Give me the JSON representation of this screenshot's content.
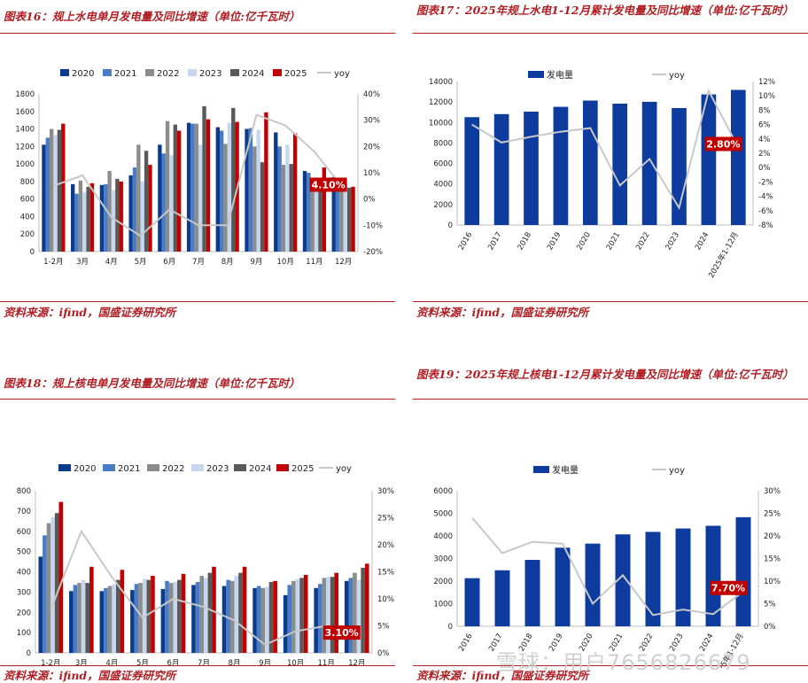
{
  "watermark": "雪球：用户7656826679",
  "panels": [
    {
      "id": "p16",
      "title": "图表16：规上水电单月发电量及同比增速（单位:亿千瓦时）",
      "source": "资料来源：ifind，国盛证券研究所",
      "callout": "4.10%",
      "colors": {
        "2020": "#0d3b8c",
        "2021": "#4a7cc4",
        "2022": "#8c8c8c",
        "2023": "#c5d7ef",
        "2024": "#595959",
        "2025": "#c00000",
        "yoy": "#c8c8c8"
      },
      "chart_data": {
        "type": "bar",
        "categories": [
          "1-2月",
          "3月",
          "4月",
          "5月",
          "6月",
          "7月",
          "8月",
          "9月",
          "10月",
          "11月",
          "12月"
        ],
        "series": [
          {
            "name": "2020",
            "values": [
              1220,
              770,
              760,
              870,
              1220,
              1470,
              1420,
              1400,
              1360,
              920,
              850
            ]
          },
          {
            "name": "2021",
            "values": [
              1300,
              660,
              770,
              960,
              1120,
              1460,
              1380,
              1410,
              1200,
              900,
              770
            ]
          },
          {
            "name": "2022",
            "values": [
              1400,
              810,
              920,
              1220,
              1490,
              1460,
              1230,
              1200,
              990,
              780,
              730
            ]
          },
          {
            "name": "2023",
            "values": [
              1330,
              680,
              700,
              800,
              1100,
              1220,
              1470,
              1390,
              1220,
              810,
              770
            ]
          },
          {
            "name": "2024",
            "values": [
              1390,
              740,
              830,
              1150,
              1450,
              1660,
              1640,
              1020,
              1000,
              820,
              730
            ]
          },
          {
            "name": "2025",
            "values": [
              1460,
              780,
              800,
              990,
              1380,
              1510,
              1480,
              1590,
              1350,
              960,
              740
            ]
          }
        ],
        "yoy": {
          "name": "yoy",
          "values": [
            5,
            9,
            -7,
            -14,
            -4,
            -10,
            -10,
            32,
            28,
            18,
            4.1
          ]
        },
        "ylim": [
          0,
          1800
        ],
        "yticks": [
          "0",
          "200",
          "400",
          "600",
          "800",
          "1000",
          "1200",
          "1400",
          "1600",
          "1800"
        ],
        "y2lim": [
          -20,
          40
        ],
        "y2ticks": [
          "-20%",
          "-10%",
          "0%",
          "10%",
          "20%",
          "30%",
          "40%"
        ],
        "legend": [
          "2020",
          "2021",
          "2022",
          "2023",
          "2024",
          "2025",
          "yoy"
        ]
      }
    },
    {
      "id": "p17",
      "title": "图表17：2025年规上水电1-12月累计发电量及同比增速（单位:亿千瓦时）",
      "source": "资料来源：ifind，国盛证券研究所",
      "callout": "2.80%",
      "colors": {
        "bar": "#0d3b9e",
        "yoy": "#c8c8c8"
      },
      "chart_data": {
        "type": "bar",
        "categories": [
          "2016",
          "2017",
          "2018",
          "2019",
          "2020",
          "2021",
          "2022",
          "2023",
          "2024",
          "2025年1-12月"
        ],
        "series": [
          {
            "name": "发电量",
            "values": [
              10520,
              10820,
              11060,
              11530,
              12140,
              11840,
              12020,
              11410,
              12740,
              13180
            ]
          }
        ],
        "yoy": {
          "name": "yoy",
          "values": [
            6,
            3.5,
            4.3,
            5,
            5.5,
            -2.5,
            1.2,
            -5.6,
            10.7,
            2.8
          ]
        },
        "ylim": [
          0,
          14000
        ],
        "yticks": [
          "0",
          "2000",
          "4000",
          "6000",
          "8000",
          "10000",
          "12000",
          "14000"
        ],
        "y2lim": [
          -8,
          12
        ],
        "y2ticks": [
          "-8%",
          "-6%",
          "-4%",
          "-2%",
          "0%",
          "2%",
          "4%",
          "6%",
          "8%",
          "10%",
          "12%"
        ],
        "legend": [
          "发电量",
          "yoy"
        ]
      }
    },
    {
      "id": "p18",
      "title": "图表18：规上核电单月发电量及同比增速（单位:亿千瓦时）",
      "source": "资料来源：ifind，国盛证券研究所",
      "callout": "3.10%",
      "colors": {
        "2020": "#0d3b8c",
        "2021": "#4a7cc4",
        "2022": "#8c8c8c",
        "2023": "#c5d7ef",
        "2024": "#595959",
        "2025": "#c00000",
        "yoy": "#c8c8c8"
      },
      "chart_data": {
        "type": "bar",
        "categories": [
          "1-2月",
          "3月",
          "4月",
          "5月",
          "6月",
          "7月",
          "8月",
          "9月",
          "10月",
          "11月",
          "12月"
        ],
        "series": [
          {
            "name": "2020",
            "values": [
              475,
              305,
              305,
              310,
              315,
              335,
              330,
              320,
              285,
              320,
              355
            ]
          },
          {
            "name": "2021",
            "values": [
              580,
              335,
              320,
              340,
              355,
              350,
              360,
              330,
              335,
              340,
              370
            ]
          },
          {
            "name": "2022",
            "values": [
              640,
              345,
              330,
              345,
              345,
              380,
              355,
              320,
              355,
              370,
              395
            ]
          },
          {
            "name": "2023",
            "values": [
              670,
              360,
              340,
              365,
              350,
              370,
              380,
              325,
              365,
              375,
              360
            ]
          },
          {
            "name": "2024",
            "values": [
              690,
              345,
              360,
              360,
              360,
              395,
              395,
              350,
              370,
              375,
              420
            ]
          },
          {
            "name": "2025",
            "values": [
              745,
              425,
              410,
              380,
              390,
              425,
              425,
              355,
              385,
              395,
              440
            ]
          }
        ],
        "yoy": {
          "name": "yoy",
          "values": [
            8,
            22.5,
            14,
            6.5,
            10,
            8.5,
            6,
            1.5,
            4,
            5,
            3.1
          ]
        },
        "ylim": [
          0,
          800
        ],
        "yticks": [
          "0",
          "100",
          "200",
          "300",
          "400",
          "500",
          "600",
          "700",
          "800"
        ],
        "y2lim": [
          0,
          30
        ],
        "y2ticks": [
          "0%",
          "5%",
          "10%",
          "15%",
          "20%",
          "25%",
          "30%"
        ],
        "legend": [
          "2020",
          "2021",
          "2022",
          "2023",
          "2024",
          "2025",
          "yoy"
        ]
      }
    },
    {
      "id": "p19",
      "title": "图表19：2025年规上核电1-12月累计发电量及同比增速（单位:亿千瓦时）",
      "source": "资料来源：ifind，国盛证券研究所",
      "callout": "7.70%",
      "colors": {
        "bar": "#0d3b9e",
        "yoy": "#c8c8c8"
      },
      "chart_data": {
        "type": "bar",
        "categories": [
          "2016",
          "2017",
          "2018",
          "2019",
          "2020",
          "2021",
          "2022",
          "2023",
          "2024",
          "2025年1-12月"
        ],
        "series": [
          {
            "name": "发电量",
            "values": [
              2130,
              2480,
              2940,
              3480,
              3660,
              4070,
              4180,
              4330,
              4450,
              4830
            ]
          }
        ],
        "yoy": {
          "name": "yoy",
          "values": [
            24,
            16.2,
            18.7,
            18.3,
            5,
            11.3,
            2.5,
            3.7,
            2.7,
            7.7
          ]
        },
        "ylim": [
          0,
          6000
        ],
        "yticks": [
          "0",
          "1000",
          "2000",
          "3000",
          "4000",
          "5000",
          "6000"
        ],
        "y2lim": [
          0,
          30
        ],
        "y2ticks": [
          "0%",
          "5%",
          "10%",
          "15%",
          "20%",
          "25%",
          "30%"
        ],
        "legend": [
          "发电量",
          "yoy"
        ]
      }
    }
  ]
}
